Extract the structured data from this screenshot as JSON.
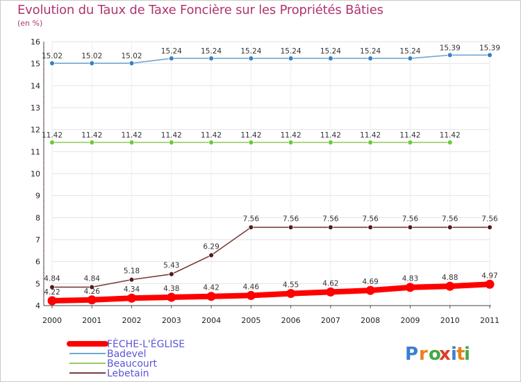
{
  "title": "Evolution du Taux de Taxe Foncière sur les Propriétés Bâties",
  "unit": "(en %)",
  "logo": {
    "text": "Proxiti",
    "letter_colors": [
      "#3a7fd0",
      "#e8801c",
      "#45a845",
      "#e03a2f",
      "#3a7fd0",
      "#e8801c",
      "#45a845"
    ]
  },
  "chart_data": {
    "type": "line",
    "title": "Evolution du Taux de Taxe Foncière sur les Propriétés Bâties",
    "ylabel": "(en %)",
    "xlabel": "",
    "x": [
      "2000",
      "2001",
      "2002",
      "2003",
      "2004",
      "2005",
      "2006",
      "2007",
      "2008",
      "2009",
      "2010",
      "2011"
    ],
    "ylim": [
      4,
      16
    ],
    "yticks": [
      4,
      5,
      6,
      7,
      8,
      9,
      10,
      11,
      12,
      13,
      14,
      15,
      16
    ],
    "grid": true,
    "legend_position": "bottom-left",
    "series": [
      {
        "name": "FÈCHE-L'ÉGLISE",
        "color": "#ff0000",
        "thick": true,
        "values": [
          4.22,
          4.26,
          4.34,
          4.38,
          4.42,
          4.46,
          4.55,
          4.62,
          4.69,
          4.83,
          4.88,
          4.97
        ],
        "labels": [
          "4.22",
          "4.26",
          "4.34",
          "4.38",
          "4.42",
          "4.46",
          "4.55",
          "4.62",
          "4.69",
          "4.83",
          "4.88",
          "4.97"
        ]
      },
      {
        "name": "Badevel",
        "color": "#6fa7d6",
        "marker": "#3a80c0",
        "values": [
          15.02,
          15.02,
          15.02,
          15.24,
          15.24,
          15.24,
          15.24,
          15.24,
          15.24,
          15.24,
          15.39,
          15.39
        ],
        "labels": [
          "15.02",
          "15.02",
          "15.02",
          "15.24",
          "15.24",
          "15.24",
          "15.24",
          "15.24",
          "15.24",
          "15.24",
          "15.39",
          "15.39"
        ]
      },
      {
        "name": "Beaucourt",
        "color": "#99cc66",
        "marker": "#66cc33",
        "values": [
          11.42,
          11.42,
          11.42,
          11.42,
          11.42,
          11.42,
          11.42,
          11.42,
          11.42,
          11.42,
          11.42,
          null
        ],
        "labels": [
          "11.42",
          "11.42",
          "11.42",
          "11.42",
          "11.42",
          "11.42",
          "11.42",
          "11.42",
          "11.42",
          "11.42",
          "11.42",
          ""
        ]
      },
      {
        "name": "Lebetain",
        "color": "#7a3a3a",
        "marker": "#551a1a",
        "values": [
          4.84,
          4.84,
          5.18,
          5.43,
          6.29,
          7.56,
          7.56,
          7.56,
          7.56,
          7.56,
          7.56,
          7.56
        ],
        "labels": [
          "4.84",
          "4.84",
          "5.18",
          "5.43",
          "6.29",
          "7.56",
          "7.56",
          "7.56",
          "7.56",
          "7.56",
          "7.56",
          "7.56"
        ]
      }
    ]
  }
}
